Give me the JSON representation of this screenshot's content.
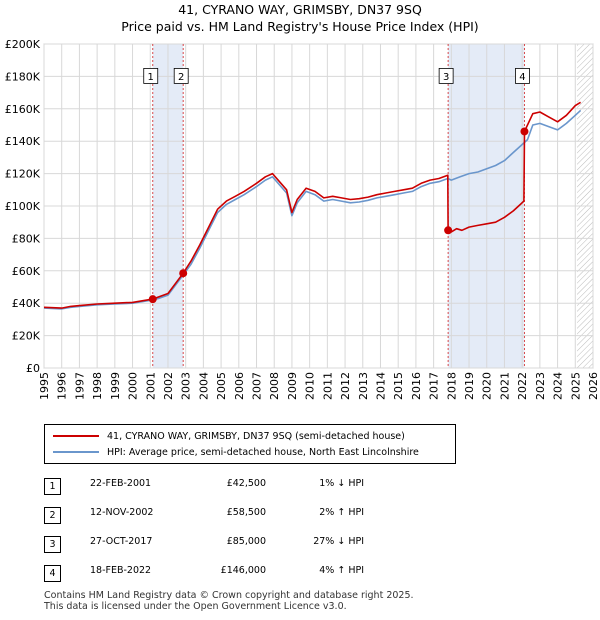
{
  "title_line1": "41, CYRANO WAY, GRIMSBY, DN37 9SQ",
  "title_line2": "Price paid vs. HM Land Registry's House Price Index (HPI)",
  "chart_data": {
    "type": "line",
    "title": "41, CYRANO WAY, GRIMSBY, DN37 9SQ — Price paid vs. HM Land Registry's House Price Index (HPI)",
    "xlabel": "",
    "ylabel": "",
    "xlim": [
      1995,
      2026
    ],
    "ylim": [
      0,
      200000
    ],
    "x_ticks": [
      "1995",
      "1996",
      "1997",
      "1998",
      "1999",
      "2000",
      "2001",
      "2002",
      "2003",
      "2004",
      "2005",
      "2006",
      "2007",
      "2008",
      "2009",
      "2010",
      "2011",
      "2012",
      "2013",
      "2014",
      "2015",
      "2016",
      "2017",
      "2018",
      "2019",
      "2020",
      "2021",
      "2022",
      "2023",
      "2024",
      "2025",
      "2026"
    ],
    "y_ticks": [
      {
        "value": 0,
        "label": "£0"
      },
      {
        "value": 20000,
        "label": "£20K"
      },
      {
        "value": 40000,
        "label": "£40K"
      },
      {
        "value": 60000,
        "label": "£60K"
      },
      {
        "value": 80000,
        "label": "£80K"
      },
      {
        "value": 100000,
        "label": "£100K"
      },
      {
        "value": 120000,
        "label": "£120K"
      },
      {
        "value": 140000,
        "label": "£140K"
      },
      {
        "value": 160000,
        "label": "£160K"
      },
      {
        "value": 180000,
        "label": "£180K"
      },
      {
        "value": 200000,
        "label": "£200K"
      }
    ],
    "grid": true,
    "series": [
      {
        "name": "41, CYRANO WAY, GRIMSBY, DN37 9SQ (semi-detached house)",
        "color": "#cc0000",
        "x": [
          1995.0,
          1996.0,
          1996.5,
          1997.0,
          1998.0,
          1999.0,
          2000.0,
          2001.14,
          2001.5,
          2002.0,
          2002.86,
          2003.3,
          2003.8,
          2004.3,
          2004.8,
          2005.3,
          2005.8,
          2006.3,
          2007.0,
          2007.5,
          2007.9,
          2008.3,
          2008.7,
          2009.0,
          2009.3,
          2009.8,
          2010.3,
          2010.8,
          2011.3,
          2011.8,
          2012.3,
          2012.8,
          2013.3,
          2013.8,
          2014.3,
          2014.8,
          2015.3,
          2015.8,
          2016.3,
          2016.8,
          2017.3,
          2017.8,
          2017.82,
          2018.0,
          2018.3,
          2018.6,
          2019.0,
          2019.5,
          2020.0,
          2020.5,
          2021.0,
          2021.5,
          2021.9,
          2022.1,
          2022.13,
          2022.3,
          2022.6,
          2023.0,
          2023.5,
          2024.0,
          2024.5,
          2025.0,
          2025.3
        ],
        "values": [
          37500,
          37000,
          38000,
          38500,
          39500,
          40000,
          40500,
          42500,
          44000,
          46000,
          58500,
          66000,
          76000,
          87000,
          98000,
          103000,
          106000,
          109000,
          114000,
          118000,
          120000,
          115000,
          110000,
          96000,
          104000,
          111000,
          109000,
          105000,
          106000,
          105000,
          104000,
          104500,
          105500,
          107000,
          108000,
          109000,
          110000,
          111000,
          114000,
          116000,
          117000,
          119000,
          85000,
          84000,
          86000,
          85000,
          87000,
          88000,
          89000,
          90000,
          93000,
          97000,
          101000,
          103000,
          146000,
          150000,
          157000,
          158000,
          155000,
          152000,
          156000,
          162000,
          164000
        ]
      },
      {
        "name": "HPI: Average price, semi-detached house, North East Lincolnshire",
        "color": "#6a96cc",
        "x": [
          1995.0,
          1996.0,
          1996.5,
          1997.0,
          1998.0,
          1999.0,
          2000.0,
          2001.0,
          2001.5,
          2002.0,
          2002.86,
          2003.3,
          2003.8,
          2004.3,
          2004.8,
          2005.3,
          2005.8,
          2006.3,
          2007.0,
          2007.5,
          2007.9,
          2008.3,
          2008.7,
          2009.0,
          2009.3,
          2009.8,
          2010.3,
          2010.8,
          2011.3,
          2011.8,
          2012.3,
          2012.8,
          2013.3,
          2013.8,
          2014.3,
          2014.8,
          2015.3,
          2015.8,
          2016.3,
          2016.8,
          2017.3,
          2017.8,
          2018.0,
          2018.5,
          2019.0,
          2019.5,
          2020.0,
          2020.5,
          2021.0,
          2021.5,
          2021.9,
          2022.3,
          2022.6,
          2023.0,
          2023.5,
          2024.0,
          2024.5,
          2025.0,
          2025.3
        ],
        "values": [
          37000,
          36500,
          37500,
          38000,
          39000,
          39500,
          40000,
          41800,
          43000,
          45000,
          57500,
          64000,
          74000,
          85000,
          96000,
          101000,
          104000,
          107000,
          112000,
          116000,
          118000,
          113000,
          108000,
          94000,
          102000,
          109000,
          107000,
          103000,
          104000,
          103000,
          102000,
          102500,
          103500,
          105000,
          106000,
          107000,
          108000,
          109000,
          112000,
          114000,
          115000,
          117000,
          116000,
          118000,
          120000,
          121000,
          123000,
          125000,
          128000,
          133000,
          137000,
          141000,
          150000,
          151000,
          149000,
          147000,
          151000,
          156000,
          159000
        ]
      }
    ],
    "sale_markers": [
      {
        "label": "1",
        "x": 2001.14,
        "value": 42500
      },
      {
        "label": "2",
        "x": 2002.86,
        "value": 58500
      },
      {
        "label": "3",
        "x": 2017.82,
        "value": 85000
      },
      {
        "label": "4",
        "x": 2022.13,
        "value": 146000
      }
    ],
    "shaded_ranges": [
      [
        2001.14,
        2002.86
      ],
      [
        2017.82,
        2022.13
      ]
    ],
    "forecast_from": 2025.1
  },
  "legend": {
    "property": "41, CYRANO WAY, GRIMSBY, DN37 9SQ (semi-detached house)",
    "hpi": "HPI: Average price, semi-detached house, North East Lincolnshire"
  },
  "sales": [
    {
      "num": "1",
      "date": "22-FEB-2001",
      "price": "£42,500",
      "hpi": "1% ↓ HPI"
    },
    {
      "num": "2",
      "date": "12-NOV-2002",
      "price": "£58,500",
      "hpi": "2% ↑ HPI"
    },
    {
      "num": "3",
      "date": "27-OCT-2017",
      "price": "£85,000",
      "hpi": "27% ↓ HPI"
    },
    {
      "num": "4",
      "date": "18-FEB-2022",
      "price": "£146,000",
      "hpi": "4% ↑ HPI"
    }
  ],
  "footer": {
    "line1": "Contains HM Land Registry data © Crown copyright and database right 2025.",
    "line2": "This data is licensed under the Open Government Licence v3.0."
  }
}
